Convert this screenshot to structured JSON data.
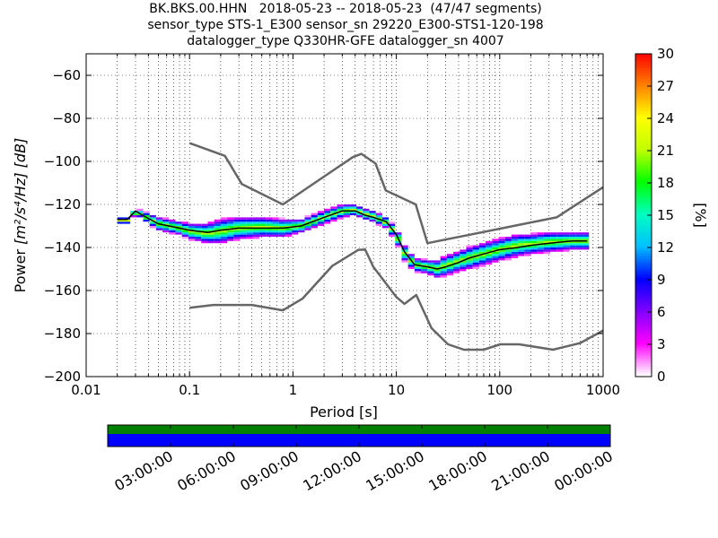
{
  "title_lines": [
    "BK.BKS.00.HHN   2018-05-23 -- 2018-05-23  (47/47 segments)",
    "sensor_type STS-1_E300 sensor_sn 29220_E300-STS1-120-198",
    "datalogger_type Q330HR-GFE datalogger_sn 4007"
  ],
  "chart_data": [
    {
      "type": "heatmap",
      "xlabel": "Period [s]",
      "ylabel_prefix": "Power ",
      "ylabel_units": "[m²/s⁴/Hz] [dB]",
      "xscale": "log",
      "xlim": [
        0.01,
        1000
      ],
      "ylim": [
        -200,
        -50
      ],
      "x_tick_labels": [
        "0.01",
        "0.1",
        "1",
        "10",
        "100",
        "1000"
      ],
      "x_tick_values": [
        0.01,
        0.1,
        1,
        10,
        100,
        1000
      ],
      "y_tick_values": [
        -200,
        -180,
        -160,
        -140,
        -120,
        -100,
        -80,
        -60
      ],
      "y_tick_labels": [
        "−200",
        "−180",
        "−160",
        "−140",
        "−120",
        "−100",
        "−80",
        "−60"
      ],
      "grid": true,
      "colorbar": {
        "label": "[%]",
        "range": [
          0,
          30
        ],
        "tick_labels": [
          "0",
          "3",
          "6",
          "9",
          "12",
          "15",
          "18",
          "21",
          "24",
          "27",
          "30"
        ],
        "tick_values": [
          0,
          3,
          6,
          9,
          12,
          15,
          18,
          21,
          24,
          27,
          30
        ],
        "colors": [
          "#ffffff",
          "#ff00ff",
          "#8000ff",
          "#0000ff",
          "#00c0ff",
          "#00ffc0",
          "#00ff00",
          "#c0ff00",
          "#ffff00",
          "#ff8000",
          "#ff0000"
        ]
      },
      "series": [
        {
          "role": "new_high_noise_model",
          "color": "#666666",
          "x": [
            0.1,
            0.22,
            0.32,
            0.8,
            3.8,
            4.6,
            6.3,
            7.9,
            15.4,
            20,
            354.8,
            1000
          ],
          "y": [
            -91.5,
            -97.4,
            -110.5,
            -120,
            -98,
            -96.5,
            -101,
            -113.5,
            -120,
            -138,
            -126,
            -112
          ]
        },
        {
          "role": "new_low_noise_model",
          "color": "#666666",
          "x": [
            0.1,
            0.17,
            0.4,
            0.8,
            1.24,
            2.4,
            4.3,
            5,
            6,
            10,
            12,
            15.6,
            21.9,
            31.6,
            45,
            70,
            101,
            154,
            328,
            600,
            1000
          ],
          "y": [
            -168,
            -166.7,
            -166.7,
            -169.2,
            -163.7,
            -148.6,
            -141.1,
            -141,
            -149,
            -163,
            -166.2,
            -162.1,
            -177.5,
            -185,
            -187.5,
            -187.5,
            -185,
            -185,
            -187.5,
            -184.4,
            -178.6
          ]
        },
        {
          "role": "mode",
          "color": "#000000",
          "x": [
            0.02,
            0.025,
            0.03,
            0.035,
            0.05,
            0.08,
            0.1,
            0.15,
            0.2,
            0.3,
            0.5,
            0.8,
            1.2,
            2,
            3,
            4,
            5,
            6,
            8,
            10,
            12,
            15,
            20,
            25,
            30,
            40,
            50,
            70,
            100,
            150,
            200,
            300,
            500,
            700
          ],
          "y": [
            -127,
            -127,
            -123,
            -125,
            -129,
            -131,
            -132,
            -133,
            -132,
            -131,
            -131,
            -131,
            -130,
            -126,
            -123,
            -123,
            -125,
            -126,
            -128,
            -134,
            -142,
            -148,
            -149,
            -150,
            -149,
            -147,
            -145,
            -143,
            -141,
            -140,
            -139,
            -138,
            -137,
            -137
          ]
        }
      ],
      "density_band": {
        "x": [
          0.02,
          0.025,
          0.03,
          0.035,
          0.05,
          0.08,
          0.1,
          0.15,
          0.2,
          0.3,
          0.5,
          0.8,
          1.2,
          2,
          3,
          4,
          5,
          6,
          8,
          10,
          12,
          15,
          20,
          25,
          30,
          40,
          50,
          70,
          100,
          150,
          200,
          300,
          500,
          700
        ],
        "upper": [
          -126,
          -126,
          -122,
          -123,
          -126,
          -128,
          -129,
          -129,
          -127,
          -126,
          -126,
          -127,
          -127,
          -123,
          -120,
          -120,
          -122,
          -123,
          -126,
          -131,
          -139,
          -145,
          -146,
          -146,
          -144,
          -142,
          -140,
          -138,
          -136,
          -134,
          -134,
          -133,
          -133,
          -133
        ],
        "lower": [
          -129,
          -129,
          -124,
          -127,
          -132,
          -134,
          -136,
          -138,
          -138,
          -136,
          -135,
          -135,
          -133,
          -129,
          -126,
          -125,
          -127,
          -128,
          -131,
          -137,
          -146,
          -151,
          -152,
          -154,
          -153,
          -151,
          -150,
          -148,
          -146,
          -144,
          -143,
          -142,
          -141,
          -141
        ]
      }
    },
    {
      "type": "timeline",
      "tick_labels": [
        "03:00:00",
        "06:00:00",
        "09:00:00",
        "12:00:00",
        "15:00:00",
        "18:00:00",
        "21:00:00",
        "00:00:00"
      ],
      "tick_values": [
        "03:00:00",
        "06:00:00",
        "09:00:00",
        "12:00:00",
        "15:00:00",
        "18:00:00",
        "21:00:00",
        "00:00:00"
      ],
      "data_color": "#008000",
      "psd_color": "#0000ff"
    }
  ]
}
